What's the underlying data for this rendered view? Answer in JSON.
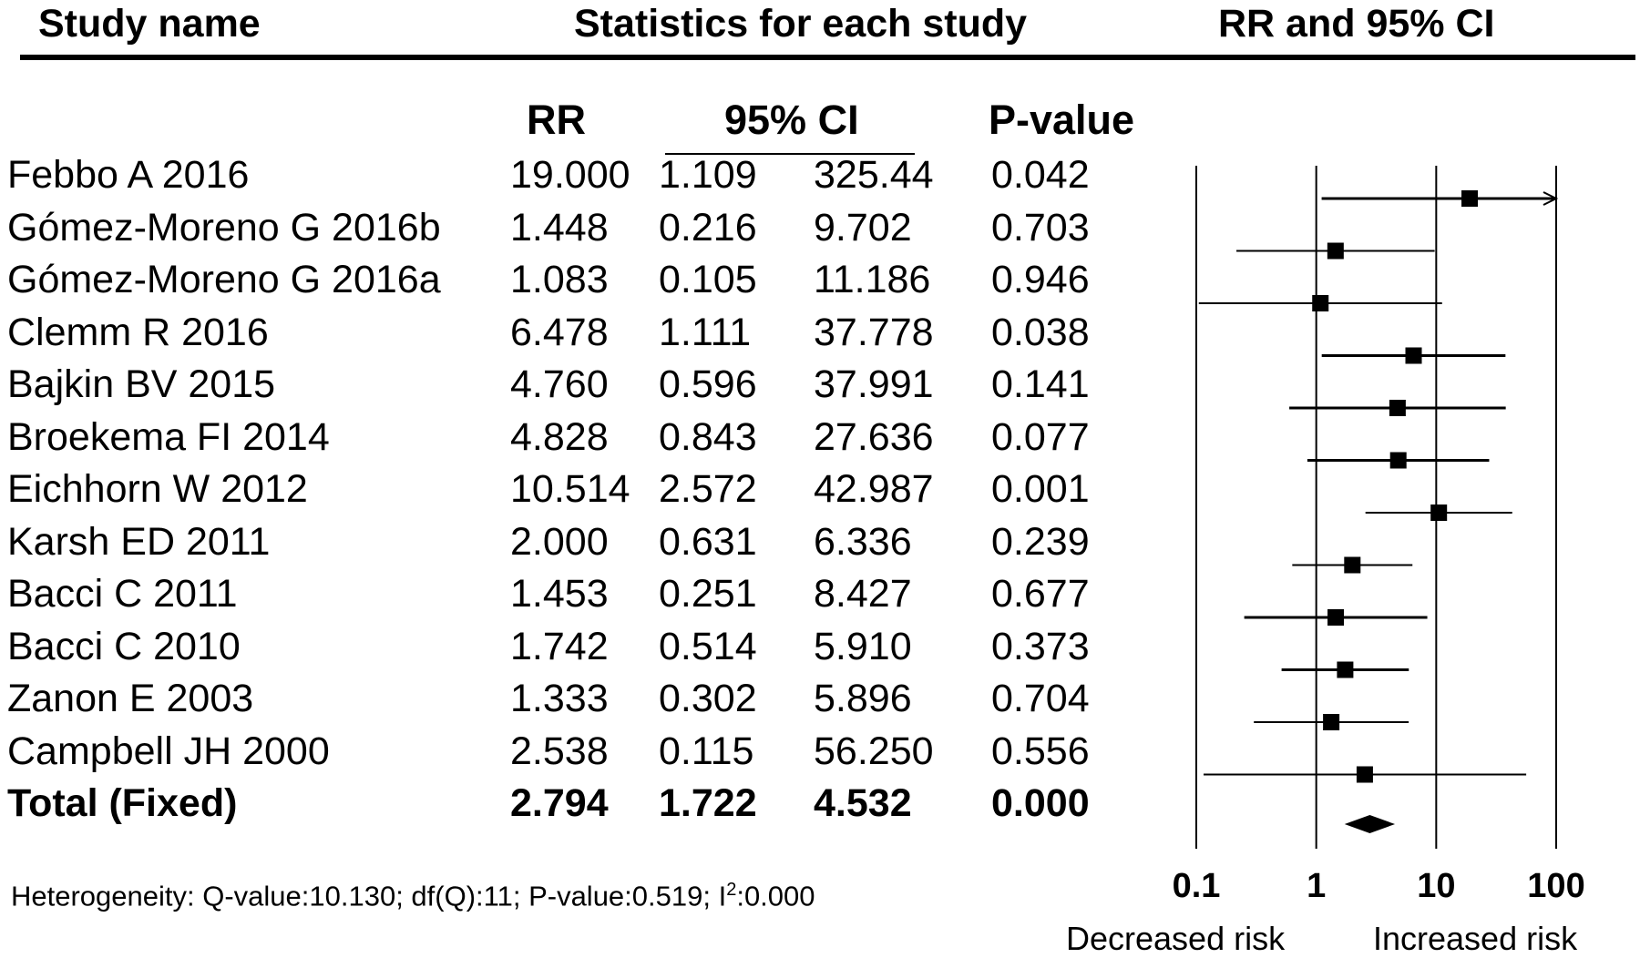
{
  "headers": {
    "study_name": "Study name",
    "statistics": "Statistics for each study",
    "rr_ci": "RR and 95% CI"
  },
  "subheaders": {
    "rr": "RR",
    "ci": "95% CI",
    "p": "P-value"
  },
  "footer": {
    "heterogeneity_prefix": "Heterogeneity:  Q-value:10.130; df(Q):11; P-value:0.519; I",
    "heterogeneity_sup": "2",
    "heterogeneity_suffix": ":0.000",
    "decreased": "Decreased risk",
    "increased": "Increased risk"
  },
  "colors": {
    "ink": "#000000",
    "background": "#ffffff"
  },
  "chart_data": {
    "type": "forest",
    "title": "RR and 95% CI",
    "scale": "log",
    "xlim": [
      0.1,
      100
    ],
    "xticks": [
      0.1,
      1,
      10,
      100
    ],
    "xtick_labels": [
      "0.1",
      "1",
      "10",
      "100"
    ],
    "studies": [
      {
        "name": "Febbo A 2016",
        "rr": "19.000",
        "lo": "1.109",
        "hi": "325.44",
        "p": "0.042",
        "rrv": 19.0,
        "lov": 1.109,
        "hiv": 325.44,
        "weight": 3
      },
      {
        "name": "Gómez-Moreno G 2016b",
        "rr": "1.448",
        "lo": "0.216",
        "hi": "9.702",
        "p": "0.703",
        "rrv": 1.448,
        "lov": 0.216,
        "hiv": 9.702,
        "weight": 2
      },
      {
        "name": "Gómez-Moreno G 2016a",
        "rr": "1.083",
        "lo": "0.105",
        "hi": "11.186",
        "p": "0.946",
        "rrv": 1.083,
        "lov": 0.105,
        "hiv": 11.186,
        "weight": 2
      },
      {
        "name": "Clemm R 2016",
        "rr": "6.478",
        "lo": "1.111",
        "hi": "37.778",
        "p": "0.038",
        "rrv": 6.478,
        "lov": 1.111,
        "hiv": 37.778,
        "weight": 3
      },
      {
        "name": "Bajkin BV 2015",
        "rr": "4.760",
        "lo": "0.596",
        "hi": "37.991",
        "p": "0.141",
        "rrv": 4.76,
        "lov": 0.596,
        "hiv": 37.991,
        "weight": 3
      },
      {
        "name": "Broekema FI 2014",
        "rr": "4.828",
        "lo": "0.843",
        "hi": "27.636",
        "p": "0.077",
        "rrv": 4.828,
        "lov": 0.843,
        "hiv": 27.636,
        "weight": 3
      },
      {
        "name": "Eichhorn W 2012",
        "rr": "10.514",
        "lo": "2.572",
        "hi": "42.987",
        "p": "0.001",
        "rrv": 10.514,
        "lov": 2.572,
        "hiv": 42.987,
        "weight": 2
      },
      {
        "name": "Karsh ED 2011",
        "rr": "2.000",
        "lo": "0.631",
        "hi": "6.336",
        "p": "0.239",
        "rrv": 2.0,
        "lov": 0.631,
        "hiv": 6.336,
        "weight": 2
      },
      {
        "name": "Bacci C 2011",
        "rr": "1.453",
        "lo": "0.251",
        "hi": "8.427",
        "p": "0.677",
        "rrv": 1.453,
        "lov": 0.251,
        "hiv": 8.427,
        "weight": 3
      },
      {
        "name": "Bacci C 2010",
        "rr": "1.742",
        "lo": "0.514",
        "hi": "5.910",
        "p": "0.373",
        "rrv": 1.742,
        "lov": 0.514,
        "hiv": 5.91,
        "weight": 3
      },
      {
        "name": "Zanon E 2003",
        "rr": "1.333",
        "lo": "0.302",
        "hi": "5.896",
        "p": "0.704",
        "rrv": 1.333,
        "lov": 0.302,
        "hiv": 5.896,
        "weight": 2
      },
      {
        "name": "Campbell JH 2000",
        "rr": "2.538",
        "lo": "0.115",
        "hi": "56.250",
        "p": "0.556",
        "rrv": 2.538,
        "lov": 0.115,
        "hiv": 56.25,
        "weight": 2
      }
    ],
    "total": {
      "name": "Total (Fixed)",
      "rr": "2.794",
      "lo": "1.722",
      "hi": "4.532",
      "p": "0.000",
      "rrv": 2.794,
      "lov": 1.722,
      "hiv": 4.532
    }
  }
}
